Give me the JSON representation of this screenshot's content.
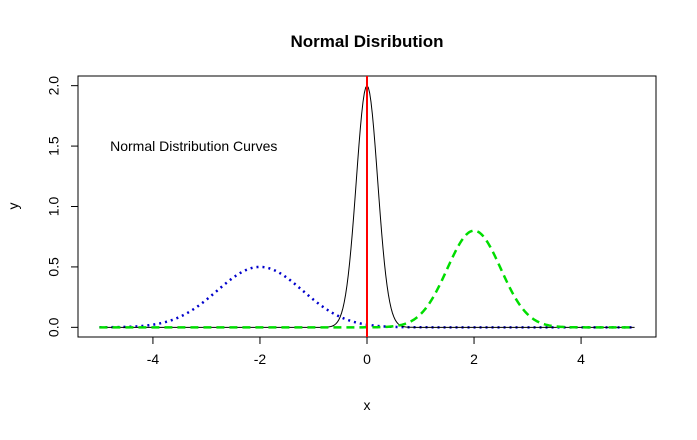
{
  "chart_data": {
    "type": "line",
    "title": "Normal Disribution",
    "xlabel": "x",
    "ylabel": "y",
    "xlim": [
      -5,
      5
    ],
    "ylim": [
      0,
      2.0
    ],
    "x_ticks": [
      -4,
      -2,
      0,
      2,
      4
    ],
    "x_tick_labels": [
      "-4",
      "-2",
      "0",
      "2",
      "4"
    ],
    "y_ticks": [
      0,
      0.5,
      1.0,
      1.5,
      2.0
    ],
    "y_tick_labels": [
      "0.0",
      "0.5",
      "1.0",
      "1.5",
      "2.0"
    ],
    "grid": false,
    "annotation": {
      "text": "Normal Distribution Curves",
      "x": -4.8,
      "y": 1.5
    },
    "series": [
      {
        "mean": -2,
        "sd": 0.8,
        "peak": 0.5,
        "color": "#0000cc",
        "style": "dotted"
      },
      {
        "mean": 0,
        "sd": 0.2,
        "peak": 2.0,
        "color": "#000000",
        "style": "solid"
      },
      {
        "mean": 2,
        "sd": 0.5,
        "peak": 0.8,
        "color": "#00dd00",
        "style": "dashed"
      }
    ],
    "vline": {
      "x": 0,
      "color": "#ff0000"
    }
  }
}
